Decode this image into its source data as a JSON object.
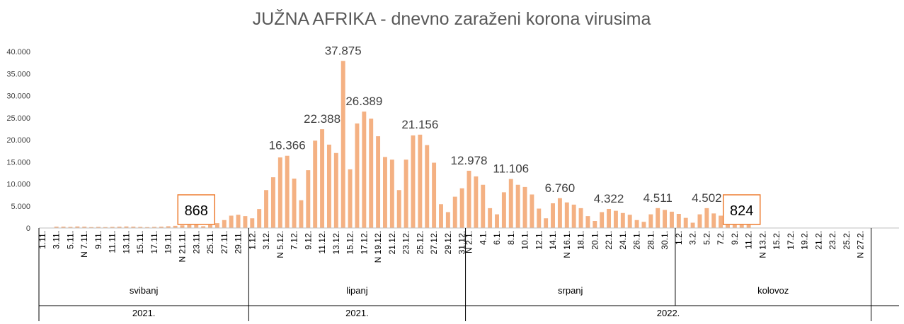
{
  "chart_data": {
    "type": "bar",
    "title": "JUŽNA AFRIKA - dnevno zaraženi korona virusima",
    "ylim": [
      0,
      40000
    ],
    "yticks": [
      "0",
      "5.000",
      "10.000",
      "15.000",
      "20.000",
      "25.000",
      "30.000",
      "35.000",
      "40.000"
    ],
    "bar_color": "#f4b183",
    "highlight_color": "#ed7d31",
    "grid": false,
    "values": [
      0,
      0,
      300,
      300,
      250,
      350,
      300,
      200,
      250,
      200,
      250,
      300,
      350,
      300,
      250,
      200,
      250,
      300,
      400,
      500,
      600,
      700,
      868,
      400,
      700,
      1100,
      1800,
      2800,
      3000,
      2700,
      2200,
      4300,
      8600,
      11500,
      16000,
      16366,
      11200,
      6300,
      13100,
      19800,
      22388,
      18900,
      17000,
      37875,
      13300,
      23700,
      26389,
      24800,
      20800,
      16100,
      15500,
      8600,
      15500,
      21000,
      21156,
      18800,
      14800,
      5400,
      3600,
      7100,
      9000,
      12978,
      11700,
      9800,
      4500,
      3100,
      8100,
      11106,
      9800,
      9300,
      7600,
      4400,
      2200,
      5600,
      6760,
      5800,
      5300,
      4500,
      2700,
      1600,
      3600,
      4322,
      3900,
      3400,
      3000,
      1800,
      1400,
      3100,
      4511,
      4100,
      3700,
      3200,
      2300,
      1200,
      3100,
      4502,
      3300,
      2800,
      3200,
      1500,
      824,
      800,
      0,
      0,
      0,
      0,
      0,
      0,
      0,
      0,
      0,
      0,
      0,
      0,
      0,
      0,
      0,
      0,
      0,
      0,
      0,
      0,
      0
    ],
    "data_labels": [
      {
        "index": 35,
        "text": "16.366"
      },
      {
        "index": 40,
        "text": "22.388"
      },
      {
        "index": 43,
        "text": "37.875"
      },
      {
        "index": 46,
        "text": "26.389"
      },
      {
        "index": 54,
        "text": "21.156"
      },
      {
        "index": 61,
        "text": "12.978"
      },
      {
        "index": 67,
        "text": "11.106"
      },
      {
        "index": 74,
        "text": "6.760"
      },
      {
        "index": 81,
        "text": "4.322"
      },
      {
        "index": 88,
        "text": "4.511"
      },
      {
        "index": 95,
        "text": "4.502"
      }
    ],
    "boxed_labels": [
      {
        "index": 22,
        "text": "868"
      },
      {
        "index": 100,
        "text": "824"
      }
    ],
    "x_tick_labels": [
      {
        "index": 0,
        "text": "1.11."
      },
      {
        "index": 2,
        "text": "3.11."
      },
      {
        "index": 4,
        "text": "5.11."
      },
      {
        "index": 6,
        "text": "N 7.11."
      },
      {
        "index": 8,
        "text": "9.11."
      },
      {
        "index": 10,
        "text": "11.11."
      },
      {
        "index": 12,
        "text": "13.11."
      },
      {
        "index": 14,
        "text": "15.11."
      },
      {
        "index": 16,
        "text": "17.11."
      },
      {
        "index": 18,
        "text": "19.11."
      },
      {
        "index": 20,
        "text": "N 21.11."
      },
      {
        "index": 22,
        "text": "23.11."
      },
      {
        "index": 24,
        "text": "25.11."
      },
      {
        "index": 26,
        "text": "27.11."
      },
      {
        "index": 28,
        "text": "29.11."
      },
      {
        "index": 30,
        "text": "1.12."
      },
      {
        "index": 32,
        "text": "3.12."
      },
      {
        "index": 34,
        "text": "N 5.12."
      },
      {
        "index": 36,
        "text": "7.12."
      },
      {
        "index": 38,
        "text": "9.12."
      },
      {
        "index": 40,
        "text": "11.12."
      },
      {
        "index": 42,
        "text": "13.12."
      },
      {
        "index": 44,
        "text": "15.12."
      },
      {
        "index": 46,
        "text": "17.12."
      },
      {
        "index": 48,
        "text": "N 19.12."
      },
      {
        "index": 50,
        "text": "21.12."
      },
      {
        "index": 52,
        "text": "23.12."
      },
      {
        "index": 54,
        "text": "25.12."
      },
      {
        "index": 56,
        "text": "27.12."
      },
      {
        "index": 58,
        "text": "29.12."
      },
      {
        "index": 60,
        "text": "31.12."
      },
      {
        "index": 61,
        "text": "N 2.1."
      },
      {
        "index": 63,
        "text": "4.1."
      },
      {
        "index": 65,
        "text": "6.1."
      },
      {
        "index": 67,
        "text": "8.1."
      },
      {
        "index": 69,
        "text": "10.1."
      },
      {
        "index": 71,
        "text": "12.1."
      },
      {
        "index": 73,
        "text": "14.1."
      },
      {
        "index": 75,
        "text": "N 16.1."
      },
      {
        "index": 77,
        "text": "18.1."
      },
      {
        "index": 79,
        "text": "20.1."
      },
      {
        "index": 81,
        "text": "22.1."
      },
      {
        "index": 83,
        "text": "24.1."
      },
      {
        "index": 85,
        "text": "26.1."
      },
      {
        "index": 87,
        "text": "28.1."
      },
      {
        "index": 89,
        "text": "30.1."
      },
      {
        "index": 91,
        "text": "1.2."
      },
      {
        "index": 93,
        "text": "3.2."
      },
      {
        "index": 95,
        "text": "5.2."
      },
      {
        "index": 97,
        "text": "7.2."
      },
      {
        "index": 99,
        "text": "9.2."
      },
      {
        "index": 101,
        "text": "11.2."
      },
      {
        "index": 103,
        "text": "N 13.2."
      },
      {
        "index": 105,
        "text": "15.2."
      },
      {
        "index": 107,
        "text": "17.2."
      },
      {
        "index": 109,
        "text": "19.2."
      },
      {
        "index": 111,
        "text": "21.2."
      },
      {
        "index": 113,
        "text": "23.2."
      },
      {
        "index": 115,
        "text": "25.2."
      },
      {
        "index": 117,
        "text": "N 27.2."
      }
    ],
    "month_groups": [
      {
        "start": 0,
        "end": 30,
        "text": "svibanj"
      },
      {
        "start": 30,
        "end": 61,
        "text": "lipanj"
      },
      {
        "start": 61,
        "end": 91,
        "text": "srpanj"
      },
      {
        "start": 91,
        "end": 119,
        "text": "kolovoz"
      }
    ],
    "year_groups": [
      {
        "start": 0,
        "end": 30,
        "text": "2021."
      },
      {
        "start": 30,
        "end": 61,
        "text": "2021."
      },
      {
        "start": 61,
        "end": 119,
        "text": "2022."
      }
    ]
  }
}
